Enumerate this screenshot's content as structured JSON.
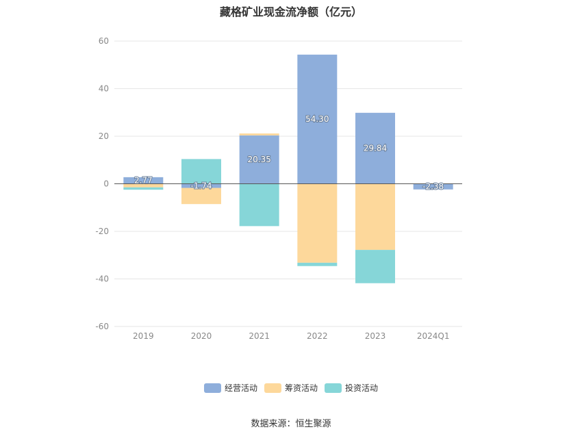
{
  "title": "藏格矿业现金流净额（亿元）",
  "source": "数据来源：恒生聚源",
  "chart_data": {
    "type": "bar",
    "stacked": true,
    "categories": [
      "2019",
      "2020",
      "2021",
      "2022",
      "2023",
      "2024Q1"
    ],
    "ylim": [
      -60,
      60
    ],
    "yticks": [
      60,
      40,
      20,
      0,
      -20,
      -40,
      -60
    ],
    "grid": true,
    "legend_position": "bottom",
    "series": [
      {
        "name": "经营活动",
        "color": "#8eaedb",
        "values": [
          2.77,
          -1.74,
          20.35,
          54.3,
          29.84,
          -2.38
        ],
        "labels": [
          "2.77",
          "-1.74",
          "20.35",
          "54.30",
          "29.84",
          "-2.38"
        ]
      },
      {
        "name": "筹资活动",
        "color": "#fdd89b",
        "values": [
          -1.5,
          -6.8,
          0.8,
          -33.2,
          -27.8,
          0
        ]
      },
      {
        "name": "投资活动",
        "color": "#86d6d8",
        "values": [
          -1.0,
          10.4,
          -17.8,
          -1.4,
          -14.0,
          0
        ]
      }
    ]
  }
}
